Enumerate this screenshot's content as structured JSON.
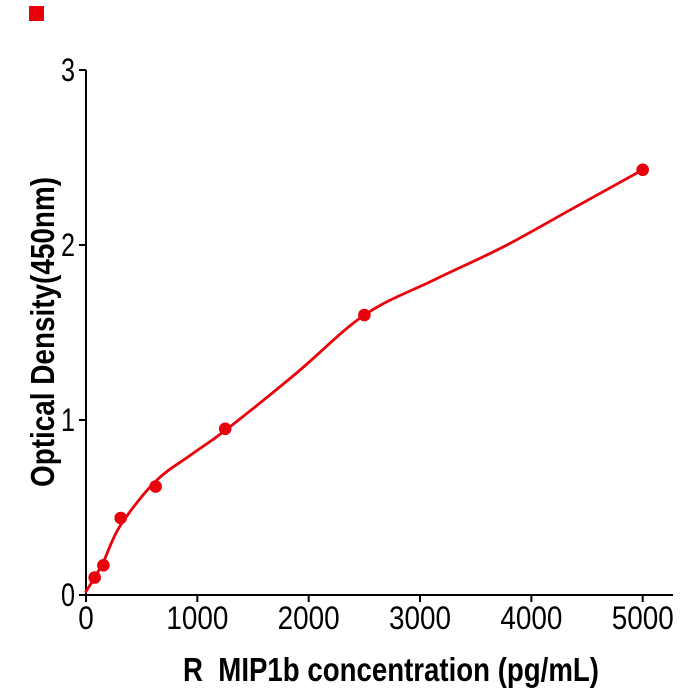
{
  "chart_data": {
    "type": "scatter",
    "title": "",
    "xlabel": "R  MIP1b concentration (pg/mL)",
    "ylabel": "Optical Density(450nm)",
    "x_ticks": [
      0,
      1000,
      2000,
      3000,
      4000,
      5000
    ],
    "y_ticks": [
      0,
      1,
      2,
      3
    ],
    "xlim": [
      0,
      5270
    ],
    "ylim": [
      0,
      3
    ],
    "grid": false,
    "legend": "none",
    "series": [
      {
        "name": "standard-curve-points",
        "x": [
          78,
          156,
          312,
          625,
          1250,
          2500,
          5000
        ],
        "y": [
          0.1,
          0.17,
          0.44,
          0.62,
          0.95,
          1.6,
          2.43
        ]
      }
    ],
    "fit_curve": {
      "name": "fitted-curve",
      "x": [
        0,
        78,
        156,
        312,
        625,
        940,
        1250,
        1875,
        2500,
        3125,
        3750,
        4375,
        5000
      ],
      "y": [
        0.02,
        0.1,
        0.19,
        0.4,
        0.65,
        0.8,
        0.94,
        1.26,
        1.6,
        1.8,
        1.99,
        2.21,
        2.43
      ]
    },
    "colors": {
      "curve": "#e8000b",
      "points": "#e8000b",
      "axis": "#000000",
      "corner_marker": "#e8000b",
      "background": "#ffffff"
    }
  }
}
